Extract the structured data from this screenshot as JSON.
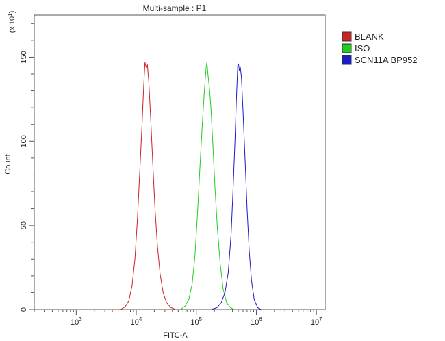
{
  "chart_data": {
    "type": "line",
    "title": "Multi-sample : P1",
    "xlabel": "FITC-A",
    "ylabel": "Count",
    "y_multiplier_label": "(x 10",
    "y_multiplier_exp": "1",
    "y_multiplier_close": ")",
    "x_scale": "log",
    "xlim": [
      200,
      14000000
    ],
    "ylim": [
      0,
      175
    ],
    "x_ticks": [
      {
        "value": 1000,
        "base": "10",
        "exp": "3"
      },
      {
        "value": 10000,
        "base": "10",
        "exp": "4"
      },
      {
        "value": 100000,
        "base": "10",
        "exp": "5"
      },
      {
        "value": 1000000,
        "base": "10",
        "exp": "6"
      },
      {
        "value": 10000000,
        "base": "10",
        "exp": "7"
      }
    ],
    "y_ticks": [
      {
        "value": 0,
        "label": "0"
      },
      {
        "value": 50,
        "label": "50"
      },
      {
        "value": 100,
        "label": "100"
      },
      {
        "value": 150,
        "label": "150"
      }
    ],
    "grid": false,
    "legend_position": "top-right",
    "series": [
      {
        "name": "BLANK",
        "color": "#cc2222",
        "peak_x": 14000,
        "peak_y": 147,
        "points": [
          [
            5500,
            0
          ],
          [
            6500,
            1.5
          ],
          [
            7500,
            5
          ],
          [
            8500,
            14
          ],
          [
            9500,
            30
          ],
          [
            10500,
            55
          ],
          [
            11500,
            84
          ],
          [
            12500,
            110
          ],
          [
            13300,
            133
          ],
          [
            14000,
            147
          ],
          [
            14600,
            144
          ],
          [
            15300,
            146
          ],
          [
            16200,
            135
          ],
          [
            17500,
            112
          ],
          [
            19000,
            84
          ],
          [
            20500,
            60
          ],
          [
            22500,
            38
          ],
          [
            25000,
            21
          ],
          [
            28000,
            10
          ],
          [
            32000,
            4
          ],
          [
            38000,
            1
          ],
          [
            45000,
            0
          ]
        ]
      },
      {
        "name": "ISO",
        "color": "#22cc22",
        "peak_x": 150000,
        "peak_y": 147,
        "points": [
          [
            55000,
            0
          ],
          [
            65000,
            2
          ],
          [
            75000,
            6
          ],
          [
            85000,
            15
          ],
          [
            95000,
            32
          ],
          [
            105000,
            58
          ],
          [
            115000,
            85
          ],
          [
            125000,
            108
          ],
          [
            135000,
            128
          ],
          [
            145000,
            143
          ],
          [
            150000,
            147
          ],
          [
            158000,
            138
          ],
          [
            165000,
            132
          ],
          [
            175000,
            120
          ],
          [
            190000,
            96
          ],
          [
            205000,
            72
          ],
          [
            225000,
            48
          ],
          [
            250000,
            27
          ],
          [
            280000,
            12
          ],
          [
            320000,
            4
          ],
          [
            370000,
            1
          ],
          [
            430000,
            0
          ]
        ]
      },
      {
        "name": "SCN11A BP952",
        "color": "#1c1cc4",
        "peak_x": 500000,
        "peak_y": 147,
        "points": [
          [
            180000,
            0
          ],
          [
            220000,
            1
          ],
          [
            260000,
            4
          ],
          [
            300000,
            10
          ],
          [
            340000,
            22
          ],
          [
            380000,
            45
          ],
          [
            410000,
            72
          ],
          [
            440000,
            100
          ],
          [
            465000,
            125
          ],
          [
            490000,
            145
          ],
          [
            505000,
            146
          ],
          [
            520000,
            142
          ],
          [
            540000,
            144
          ],
          [
            565000,
            138
          ],
          [
            600000,
            118
          ],
          [
            650000,
            88
          ],
          [
            700000,
            60
          ],
          [
            760000,
            35
          ],
          [
            830000,
            17
          ],
          [
            920000,
            6
          ],
          [
            1050000,
            1
          ],
          [
            1200000,
            0
          ]
        ]
      }
    ]
  }
}
